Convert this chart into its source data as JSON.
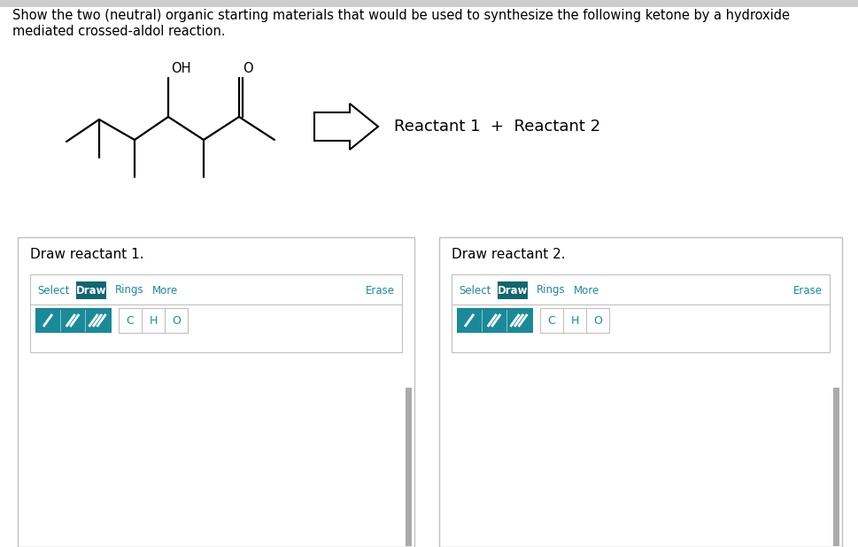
{
  "bg_color": "#e8e8e8",
  "page_bg": "#ffffff",
  "title_line1": "Show the two (neutral) organic starting materials that would be used to synthesize the following ketone by a hydroxide",
  "title_line2": "mediated crossed-aldol reaction.",
  "title_fontsize": 10.5,
  "reactant_label": "Reactant 1  +  Reactant 2",
  "reactant_label_fontsize": 13,
  "draw_reactant1_label": "Draw reactant 1.",
  "draw_reactant2_label": "Draw reactant 2.",
  "teal_color": "#1a8a99",
  "teal_dark": "#116670",
  "black": "#000000",
  "panel_border": "#c0c0c0",
  "scrollbar_color": "#aaaaaa",
  "mol_lw": 1.6,
  "top_bar_color": "#cccccc"
}
